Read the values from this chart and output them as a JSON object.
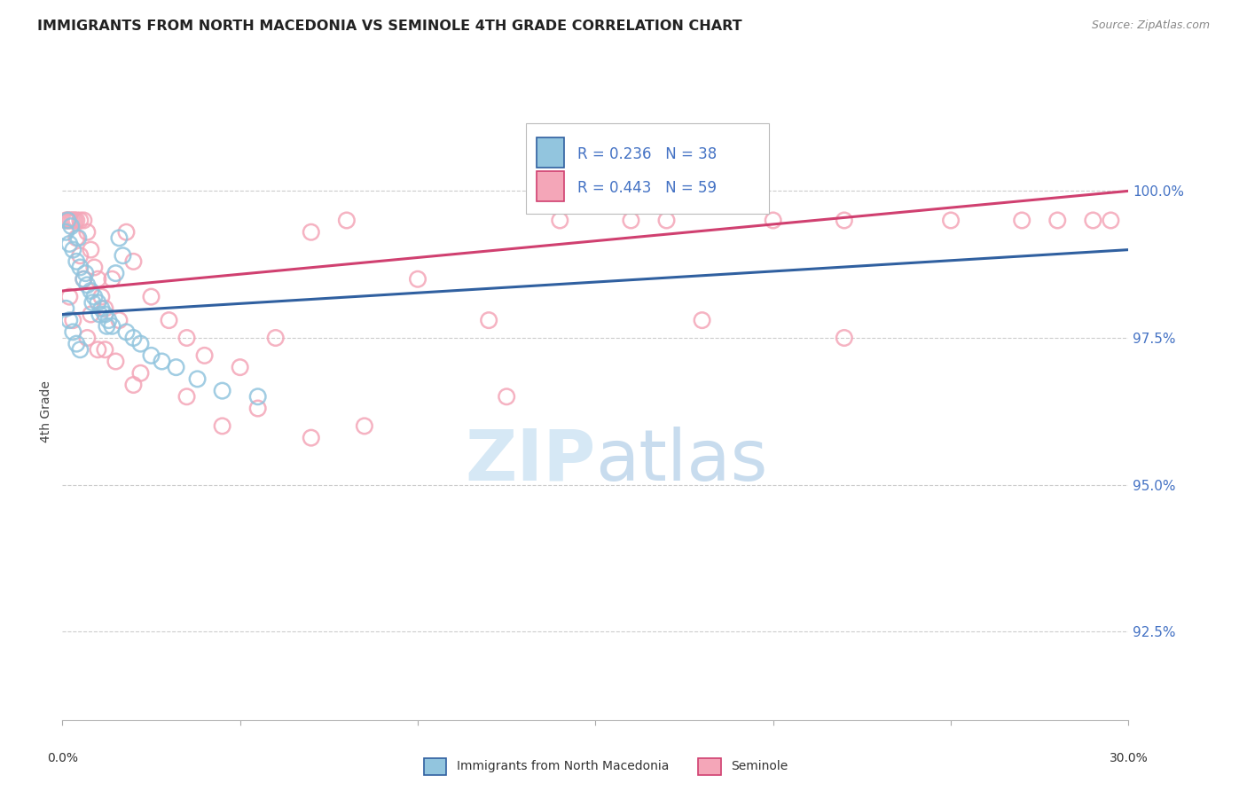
{
  "title": "IMMIGRANTS FROM NORTH MACEDONIA VS SEMINOLE 4TH GRADE CORRELATION CHART",
  "source": "Source: ZipAtlas.com",
  "ylabel": "4th Grade",
  "yaxis_values": [
    92.5,
    95.0,
    97.5,
    100.0
  ],
  "xlim": [
    0.0,
    30.0
  ],
  "ylim": [
    91.0,
    101.5
  ],
  "legend_label1": "Immigrants from North Macedonia",
  "legend_label2": "Seminole",
  "R1": 0.236,
  "N1": 38,
  "R2": 0.443,
  "N2": 59,
  "color_blue": "#92c5de",
  "color_pink": "#f4a6b8",
  "line_blue": "#3060a0",
  "line_pink": "#d04070",
  "scatter_blue_x": [
    0.1,
    0.2,
    0.3,
    0.4,
    0.5,
    0.6,
    0.7,
    0.8,
    0.9,
    1.0,
    1.1,
    1.2,
    1.3,
    1.4,
    1.5,
    1.6,
    1.7,
    1.8,
    2.0,
    2.2,
    2.5,
    2.8,
    3.2,
    3.8,
    4.5,
    5.5,
    0.15,
    0.25,
    0.45,
    0.65,
    0.85,
    1.05,
    1.25,
    0.1,
    0.2,
    0.3,
    0.4,
    0.5
  ],
  "scatter_blue_y": [
    99.3,
    99.1,
    99.0,
    98.8,
    98.7,
    98.5,
    98.4,
    98.3,
    98.2,
    98.1,
    98.0,
    97.9,
    97.8,
    97.7,
    98.6,
    99.2,
    98.9,
    97.6,
    97.5,
    97.4,
    97.2,
    97.1,
    97.0,
    96.8,
    96.6,
    96.5,
    99.5,
    99.4,
    99.2,
    98.6,
    98.1,
    97.9,
    97.7,
    98.0,
    97.8,
    97.6,
    97.4,
    97.3
  ],
  "scatter_pink_x": [
    0.1,
    0.15,
    0.2,
    0.25,
    0.3,
    0.35,
    0.4,
    0.5,
    0.6,
    0.7,
    0.8,
    0.9,
    1.0,
    1.1,
    1.2,
    1.4,
    1.6,
    1.8,
    2.0,
    2.5,
    3.0,
    3.5,
    4.0,
    5.0,
    6.0,
    7.0,
    8.0,
    10.0,
    12.0,
    14.0,
    16.0,
    18.0,
    20.0,
    22.0,
    25.0,
    28.0,
    29.5,
    0.2,
    0.3,
    0.5,
    0.7,
    1.0,
    1.5,
    2.2,
    3.5,
    5.5,
    8.5,
    12.5,
    17.0,
    22.0,
    27.0,
    29.0,
    0.4,
    0.6,
    0.8,
    1.2,
    2.0,
    4.5,
    7.0
  ],
  "scatter_pink_y": [
    99.5,
    99.5,
    99.5,
    99.5,
    99.5,
    99.5,
    99.5,
    99.5,
    99.5,
    99.3,
    99.0,
    98.7,
    98.5,
    98.2,
    98.0,
    98.5,
    97.8,
    99.3,
    98.8,
    98.2,
    97.8,
    97.5,
    97.2,
    97.0,
    97.5,
    99.3,
    99.5,
    98.5,
    97.8,
    99.5,
    99.5,
    97.8,
    99.5,
    97.5,
    99.5,
    99.5,
    99.5,
    98.2,
    97.8,
    98.9,
    97.5,
    97.3,
    97.1,
    96.9,
    96.5,
    96.3,
    96.0,
    96.5,
    99.5,
    99.5,
    99.5,
    99.5,
    99.2,
    98.5,
    97.9,
    97.3,
    96.7,
    96.0,
    95.8
  ],
  "trendline_blue": [
    97.9,
    99.0
  ],
  "trendline_pink": [
    98.3,
    100.0
  ],
  "watermark_zip_color": "#d6e8f5",
  "watermark_atlas_color": "#c8dcee"
}
